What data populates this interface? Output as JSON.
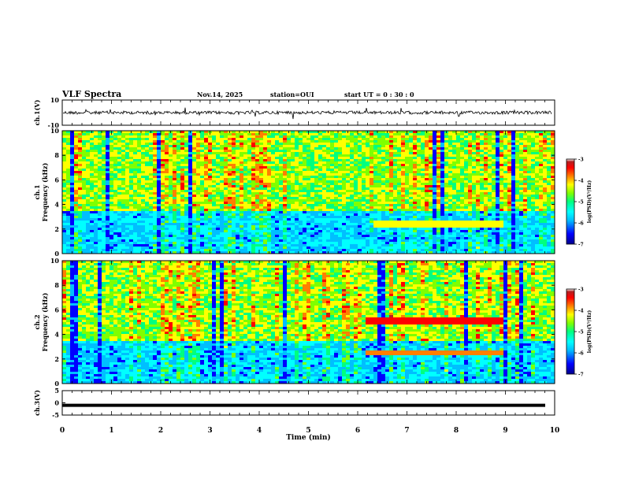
{
  "header": {
    "title": "VLF Spectra",
    "date": "Nov.14, 2025",
    "station": "station=OUI",
    "start_ut": "start  UT =   0 : 30 : 0"
  },
  "colors": {
    "colormap": [
      "#00008b",
      "#0000ff",
      "#00bfff",
      "#00ffff",
      "#00ff7f",
      "#7fff00",
      "#ffff00",
      "#ff7f00",
      "#ff0000",
      "#b22222",
      "#ffffff"
    ],
    "trace": "#000000"
  },
  "chart_data": [
    {
      "type": "line",
      "panel": "ch1-waveform",
      "ylabel": "ch.1(V)",
      "ylim": [
        -10,
        10
      ],
      "yticks": [
        "10",
        "-10"
      ],
      "xlim": [
        0,
        10
      ],
      "series": [
        {
          "values_note": "noisy waveform near y=0"
        }
      ]
    },
    {
      "type": "heatmap",
      "panel": "ch1-spectrogram",
      "ylabel": "ch.1\nFrequency (kHz)",
      "ylim": [
        0,
        10
      ],
      "yticks": [
        "0",
        "2",
        "4",
        "6",
        "8",
        "10"
      ],
      "xlim": [
        0,
        10
      ],
      "colorbar": {
        "label": "log(PSD)(V²/Hz)",
        "ticks": [
          "-3",
          "-4",
          "-5",
          "-6",
          "-7"
        ],
        "range": [
          -7,
          -3
        ]
      }
    },
    {
      "type": "heatmap",
      "panel": "ch2-spectrogram",
      "ylabel": "ch.2\nFrequency (kHz)",
      "ylim": [
        0,
        10
      ],
      "yticks": [
        "0",
        "2",
        "4",
        "6",
        "8",
        "10"
      ],
      "xlim": [
        0,
        10
      ],
      "colorbar": {
        "label": "log(PSD)(V²/Hz)",
        "ticks": [
          "-3",
          "-4",
          "-5",
          "-6",
          "-7"
        ],
        "range": [
          -7,
          -3
        ]
      }
    },
    {
      "type": "line",
      "panel": "ch3-waveform",
      "ylabel": "ch.3(V)",
      "ylim": [
        -5,
        5
      ],
      "yticks": [
        "5",
        "0",
        "-5"
      ],
      "xlim": [
        0,
        10
      ],
      "series": [
        {
          "values": [
            -1,
            -1
          ]
        }
      ]
    }
  ],
  "xaxis": {
    "label": "Time  (min)",
    "ticks": [
      "0",
      "1",
      "2",
      "3",
      "4",
      "5",
      "6",
      "7",
      "8",
      "9",
      "10"
    ]
  }
}
